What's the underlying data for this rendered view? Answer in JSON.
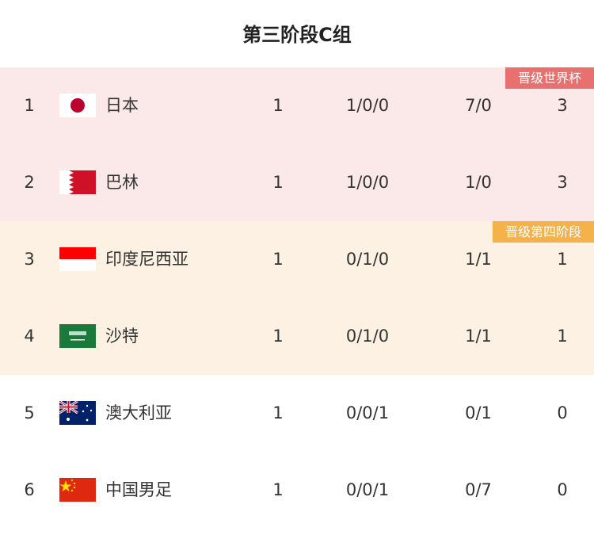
{
  "title": "第三阶段C组",
  "colors": {
    "qualified_bg": "#fbe8e8",
    "qualified_badge": "#e8716f",
    "next_stage_bg": "#fdf1e4",
    "next_stage_badge": "#f5b14a"
  },
  "badges": {
    "qualified": "晋级世界杯",
    "next_stage": "晋级第四阶段"
  },
  "rows": [
    {
      "rank": "1",
      "team": "日本",
      "flag": "japan-flag-icon",
      "played": "1",
      "wdl": "1/0/0",
      "goals": "7/0",
      "points": "3"
    },
    {
      "rank": "2",
      "team": "巴林",
      "flag": "bahrain-flag-icon",
      "played": "1",
      "wdl": "1/0/0",
      "goals": "1/0",
      "points": "3"
    },
    {
      "rank": "3",
      "team": "印度尼西亚",
      "flag": "indonesia-flag-icon",
      "played": "1",
      "wdl": "0/1/0",
      "goals": "1/1",
      "points": "1"
    },
    {
      "rank": "4",
      "team": "沙特",
      "flag": "saudi-arabia-flag-icon",
      "played": "1",
      "wdl": "0/1/0",
      "goals": "1/1",
      "points": "1"
    },
    {
      "rank": "5",
      "team": "澳大利亚",
      "flag": "australia-flag-icon",
      "played": "1",
      "wdl": "0/0/1",
      "goals": "0/1",
      "points": "0"
    },
    {
      "rank": "6",
      "team": "中国男足",
      "flag": "china-flag-icon",
      "played": "1",
      "wdl": "0/0/1",
      "goals": "0/7",
      "points": "0"
    }
  ]
}
